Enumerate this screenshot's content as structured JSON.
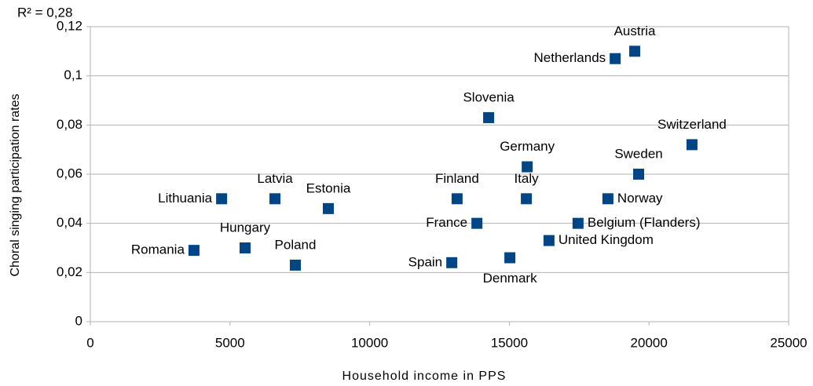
{
  "chart_data": {
    "type": "scatter",
    "annotation": "R² = 0,28",
    "x_label": "Household income in PPS",
    "y_label": "Choral singing participation rates",
    "xlim": [
      0,
      25000
    ],
    "xticks": [
      0,
      5000,
      10000,
      15000,
      20000,
      25000
    ],
    "ylim": [
      0,
      0.12
    ],
    "yticks": [
      0,
      {
        "value": 0.02,
        "label": "0,02"
      },
      {
        "value": 0.04,
        "label": "0,04"
      },
      {
        "value": 0.06,
        "label": "0,06"
      },
      {
        "value": 0.08,
        "label": "0,08"
      },
      {
        "value": 0.1,
        "label": "0,1"
      },
      {
        "value": 0.12,
        "label": "0,12"
      }
    ],
    "grid": true,
    "color": "#004586",
    "points": [
      "Romania",
      "Lithuania",
      "Hungary",
      "Latvia",
      "Poland",
      "Estonia",
      "Spain",
      "Finland",
      "France",
      "Slovenia",
      "Denmark",
      "Germany",
      "Italy",
      "United Kingdom",
      "Belgium (Flanders)",
      "Norway",
      "Netherlands",
      "Austria",
      "Sweden",
      "Switzerland"
    ],
    "x": [
      3710,
      4700,
      5540,
      6610,
      7340,
      8520,
      12940,
      13130,
      13840,
      14260,
      15020,
      15640,
      15610,
      16420,
      17460,
      18530,
      18790,
      19490,
      19630,
      21540
    ],
    "values": [
      0.029,
      0.05,
      0.03,
      0.05,
      0.023,
      0.046,
      0.024,
      0.05,
      0.04,
      0.083,
      0.026,
      0.063,
      0.05,
      0.033,
      0.04,
      0.05,
      0.107,
      0.11,
      0.06,
      0.072
    ]
  }
}
